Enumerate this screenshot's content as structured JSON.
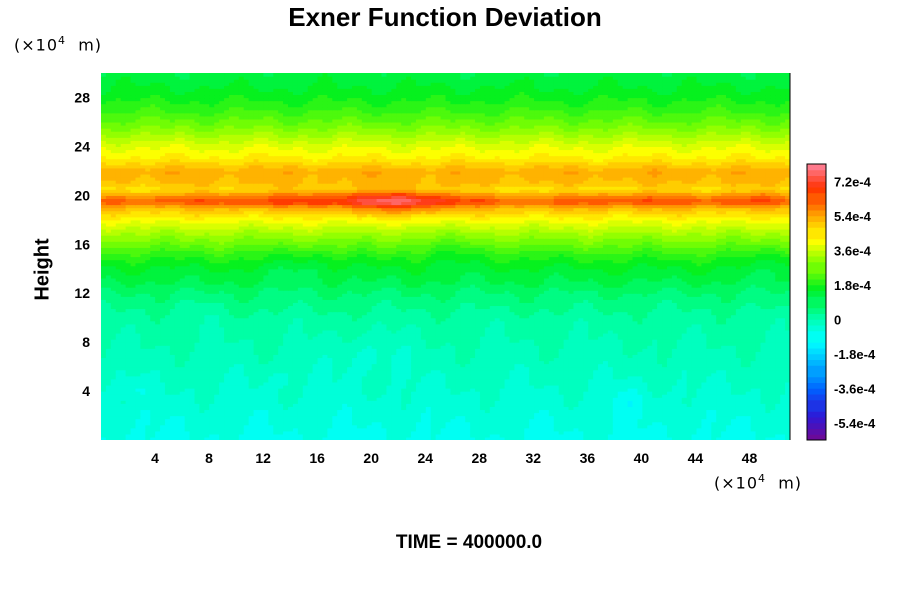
{
  "chart_data": {
    "type": "heatmap",
    "title": "Exner Function Deviation",
    "ylabel": "Height",
    "xlabel": "",
    "x_unit": "m",
    "y_unit": "m",
    "scale_base": "10",
    "scale_exp": "4",
    "time_label": "TIME = 400000.0",
    "xlim": [
      0,
      51
    ],
    "ylim": [
      0,
      30
    ],
    "x_ticks": [
      4,
      8,
      12,
      16,
      20,
      24,
      28,
      32,
      36,
      40,
      44,
      48
    ],
    "y_ticks": [
      4,
      8,
      12,
      16,
      20,
      24,
      28
    ],
    "vmin": -0.00063,
    "vmax": 0.00081,
    "colorbar_ticks": [
      {
        "value": 0.00072,
        "label": "7.2e-4"
      },
      {
        "value": 0.00054,
        "label": "5.4e-4"
      },
      {
        "value": 0.00036,
        "label": "3.6e-4"
      },
      {
        "value": 0.00018,
        "label": "1.8e-4"
      },
      {
        "value": 0,
        "label": "0"
      },
      {
        "value": -0.00018,
        "label": "-1.8e-4"
      },
      {
        "value": -0.00036,
        "label": "-3.6e-4"
      },
      {
        "value": -0.00054,
        "label": "-5.4e-4"
      }
    ],
    "colormap": [
      "#6a0a9a",
      "#2e18d6",
      "#0060ff",
      "#00b4ff",
      "#00ffff",
      "#00ffa0",
      "#00f020",
      "#80ff00",
      "#ffff00",
      "#ffa000",
      "#ff3000",
      "#ff7a8c"
    ],
    "profile": {
      "height": [
        0,
        2,
        4,
        6,
        8,
        10,
        12,
        13,
        14,
        15,
        16,
        17,
        18,
        19,
        19.5,
        20,
        20.5,
        21,
        22,
        23,
        24,
        25,
        26,
        27,
        28,
        29,
        30
      ],
      "value": [
        -8e-05,
        -6e-05,
        -4e-05,
        -2e-05,
        0,
        2e-05,
        7e-05,
        0.00011,
        0.00014,
        0.00019,
        0.00026,
        0.00033,
        0.00041,
        0.00051,
        0.00063,
        0.00055,
        0.00045,
        0.0005,
        0.00053,
        0.00044,
        0.00039,
        0.00032,
        0.00026,
        0.00021,
        0.00017,
        0.00014,
        0.00012
      ]
    },
    "features": [
      {
        "x": 22,
        "y": 19.6,
        "sx": 3,
        "sy": 0.7,
        "amp": 0.00014
      },
      {
        "x": 14,
        "y": 19.9,
        "sx": 5,
        "sy": 0.6,
        "amp": 5e-05
      },
      {
        "x": 40,
        "y": 19.8,
        "sx": 3,
        "sy": 0.5,
        "amp": 3e-05
      },
      {
        "x": 48,
        "y": 19.9,
        "sx": 2,
        "sy": 0.5,
        "amp": 4e-05
      },
      {
        "x": 15,
        "y": 14.3,
        "sx": 1.5,
        "sy": 1.0,
        "amp": -4e-05
      },
      {
        "x": 26,
        "y": 15.5,
        "sx": 2,
        "sy": 1.2,
        "amp": -3e-05
      },
      {
        "x": 50,
        "y": 14.5,
        "sx": 1,
        "sy": 1,
        "amp": -4e-05
      },
      {
        "x": 20,
        "y": 7,
        "sx": 1.8,
        "sy": 1.2,
        "amp": -4e-05
      },
      {
        "x": 39,
        "y": 3.2,
        "sx": 1.2,
        "sy": 0.8,
        "amp": -4e-05
      },
      {
        "x": 2.5,
        "y": 4.3,
        "sx": 0.6,
        "sy": 0.6,
        "amp": -3e-05
      },
      {
        "x": 13.5,
        "y": 5,
        "sx": 0.6,
        "sy": 0.5,
        "amp": -3e-05
      },
      {
        "x": 7,
        "y": 10.5,
        "sx": 1,
        "sy": 0.8,
        "amp": -2e-05
      }
    ]
  }
}
